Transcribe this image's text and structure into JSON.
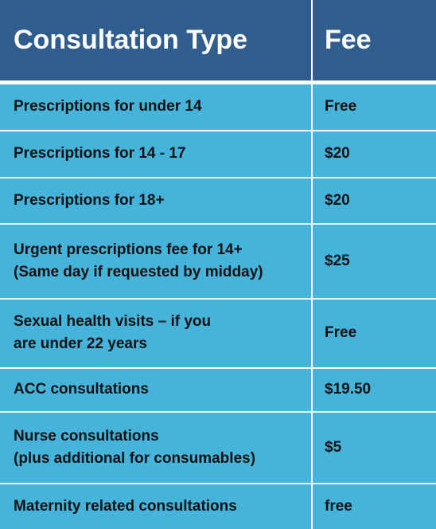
{
  "table": {
    "headers": {
      "type": "Consultation Type",
      "fee": "Fee"
    },
    "rows": [
      {
        "type": [
          "Prescriptions for under 14"
        ],
        "fee": "Free"
      },
      {
        "type": [
          "Prescriptions for 14 - 17"
        ],
        "fee": "$20"
      },
      {
        "type": [
          "Prescriptions for 18+"
        ],
        "fee": "$20"
      },
      {
        "type": [
          "Urgent prescriptions fee for 14+",
          "(Same day if requested by midday)"
        ],
        "fee": "$25"
      },
      {
        "type": [
          "Sexual health visits – if you",
          "are under 22 years"
        ],
        "fee": "Free"
      },
      {
        "type": [
          "ACC consultations"
        ],
        "fee": "$19.50"
      },
      {
        "type": [
          "Nurse consultations",
          "(plus additional for consumables)"
        ],
        "fee": "$5"
      },
      {
        "type": [
          "Maternity related consultations"
        ],
        "fee": "free"
      }
    ]
  },
  "colors": {
    "header_bg": "#2f5d8e",
    "row_bg": "#46b3db",
    "grid": "#ffffff"
  }
}
